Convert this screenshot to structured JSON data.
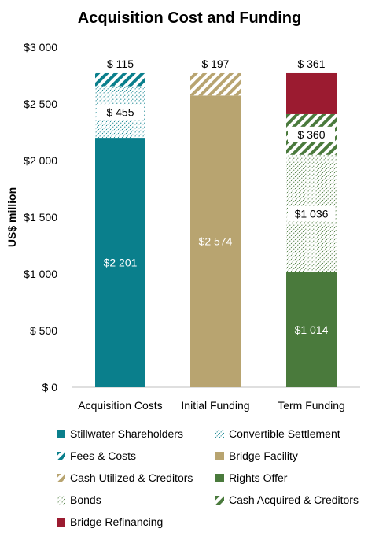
{
  "chart_data": {
    "type": "bar",
    "stacked": true,
    "title": "Acquisition Cost and Funding",
    "ylabel": "US$ million",
    "xlabel": "",
    "ylim": [
      0,
      3000
    ],
    "yticks": [
      0,
      500,
      1000,
      1500,
      2000,
      2500,
      3000
    ],
    "ytick_labels": [
      "$ 0",
      "$ 500",
      "$1 000",
      "$1 500",
      "$2 000",
      "$2 500",
      "$3 000"
    ],
    "categories": [
      "Acquisition Costs",
      "Initial Funding",
      "Term Funding"
    ],
    "grid": false,
    "legend_position": "bottom",
    "series": [
      {
        "name": "Stillwater Shareholders",
        "values": [
          2201,
          0,
          0
        ],
        "labels": [
          "$2 201",
          "",
          ""
        ],
        "color": "#0a7f8c",
        "pattern": "solid"
      },
      {
        "name": "Convertible Settlement",
        "values": [
          455,
          0,
          0
        ],
        "labels": [
          "$ 455",
          "",
          ""
        ],
        "color": "#0a7f8c",
        "pattern": "dots"
      },
      {
        "name": "Fees & Costs",
        "values": [
          115,
          0,
          0
        ],
        "labels": [
          "$ 115",
          "",
          ""
        ],
        "color": "#0a7f8c",
        "pattern": "wide-diagonal"
      },
      {
        "name": "Bridge Facility",
        "values": [
          0,
          2574,
          0
        ],
        "labels": [
          "",
          "$2 574",
          ""
        ],
        "color": "#b8a470",
        "pattern": "solid"
      },
      {
        "name": "Cash Utilized & Creditors",
        "values": [
          0,
          197,
          0
        ],
        "labels": [
          "",
          "$ 197",
          ""
        ],
        "color": "#b8a470",
        "pattern": "wide-diagonal"
      },
      {
        "name": "Rights Offer",
        "values": [
          0,
          0,
          1014
        ],
        "labels": [
          "",
          "",
          "$1 014"
        ],
        "color": "#4a7a3c",
        "pattern": "solid"
      },
      {
        "name": "Bonds",
        "values": [
          0,
          0,
          1036
        ],
        "labels": [
          "",
          "",
          "$1 036"
        ],
        "color": "#4a7a3c",
        "pattern": "dots"
      },
      {
        "name": "Cash Acquired & Creditors",
        "values": [
          0,
          0,
          360
        ],
        "labels": [
          "",
          "",
          "$ 360"
        ],
        "color": "#4a7a3c",
        "pattern": "wide-diagonal"
      },
      {
        "name": "Bridge Refinancing",
        "values": [
          0,
          0,
          361
        ],
        "labels": [
          "",
          "",
          "$ 361"
        ],
        "color": "#9b1b30",
        "pattern": "solid"
      }
    ],
    "legend_entries": [
      "Stillwater Shareholders",
      "Convertible Settlement",
      "Fees & Costs",
      "Bridge Facility",
      "Cash Utilized & Creditors",
      "Rights Offer",
      "Bonds",
      "Cash Acquired & Creditors",
      "Bridge Refinancing"
    ]
  }
}
